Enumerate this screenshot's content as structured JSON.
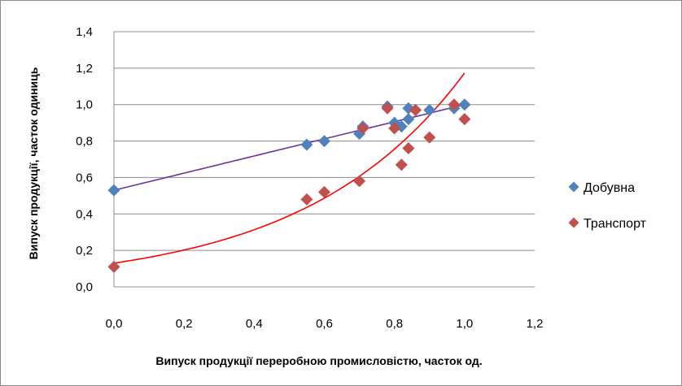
{
  "chart_data": {
    "type": "scatter",
    "xlabel": "Випуск продукції переробною промисловістю,  часток од.",
    "ylabel": "Випуск продукції,  часток одиниць",
    "xlim": [
      0,
      1.2
    ],
    "ylim": [
      0,
      1.4
    ],
    "x_ticks": [
      "0,0",
      "0,2",
      "0,4",
      "0,6",
      "0,8",
      "1,0",
      "1,2"
    ],
    "y_ticks": [
      "0,0",
      "0,2",
      "0,4",
      "0,6",
      "0,8",
      "1,0",
      "1,2",
      "1,4"
    ],
    "grid": "horizontal",
    "legend_position": "right",
    "series": [
      {
        "name": "Добувна",
        "marker": "diamond",
        "color": "#4f81bd",
        "x": [
          0.0,
          0.55,
          0.6,
          0.7,
          0.71,
          0.78,
          0.8,
          0.82,
          0.84,
          0.84,
          0.86,
          0.9,
          0.97,
          1.0
        ],
        "y": [
          0.53,
          0.78,
          0.8,
          0.84,
          0.88,
          0.99,
          0.9,
          0.88,
          0.92,
          0.98,
          0.97,
          0.97,
          0.98,
          1.0
        ]
      },
      {
        "name": "Транспорт",
        "marker": "diamond",
        "color": "#c0504d",
        "x": [
          0.0,
          0.55,
          0.6,
          0.7,
          0.71,
          0.78,
          0.8,
          0.82,
          0.84,
          0.86,
          0.9,
          0.97,
          1.0
        ],
        "y": [
          0.11,
          0.48,
          0.52,
          0.58,
          0.87,
          0.98,
          0.87,
          0.67,
          0.76,
          0.97,
          0.82,
          1.0,
          0.92
        ]
      }
    ],
    "trendlines": [
      {
        "series": "Добувна",
        "type": "linear",
        "color": "#7030a0",
        "x_range": [
          0.0,
          1.0
        ],
        "slope": 0.47,
        "intercept": 0.53
      },
      {
        "series": "Транспорт",
        "type": "exponential",
        "color": "#ff0000",
        "x_range": [
          0.0,
          1.0
        ],
        "a": 0.13,
        "b": 2.2
      }
    ]
  }
}
